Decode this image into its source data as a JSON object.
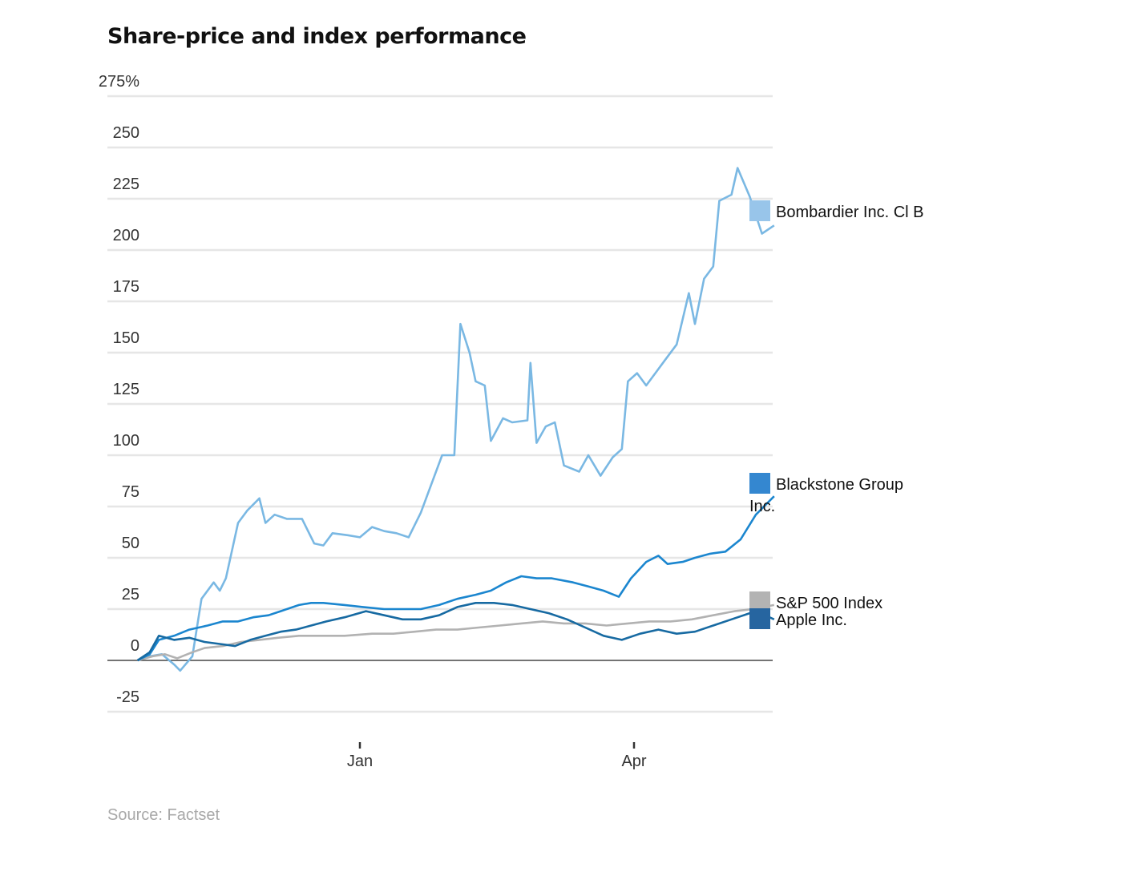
{
  "title": "Share-price and index performance",
  "source": "Source: Factset",
  "chart_data": {
    "type": "line",
    "title": "Share-price and index performance",
    "ylabel": "",
    "xlabel": "",
    "y_unit": "%",
    "ylim": [
      -25,
      275
    ],
    "yticks": [
      -25,
      0,
      25,
      50,
      75,
      100,
      125,
      150,
      175,
      200,
      225,
      250,
      275
    ],
    "ytick_labels": [
      "-25",
      "0",
      "25",
      "50",
      "75",
      "100",
      "125",
      "150",
      "175",
      "200",
      "225",
      "250",
      "275%"
    ],
    "x_domain": [
      "2016-10-28",
      "2017-05-17"
    ],
    "xticks": [
      {
        "date": "2017-01-01",
        "label": "Jan"
      },
      {
        "date": "2017-04-01",
        "label": "Apr"
      }
    ],
    "grid": true,
    "legend": "right",
    "series": [
      {
        "name": "Bombardier Inc. Cl B",
        "legend_label": [
          "Bombardier Inc. Cl B"
        ],
        "color": "#7ab8e3",
        "swatch": "#98c5ea",
        "points": [
          [
            "2016-10-20",
            0
          ],
          [
            "2016-10-24",
            2
          ],
          [
            "2016-10-28",
            3
          ],
          [
            "2016-11-01",
            -2
          ],
          [
            "2016-11-03",
            -5
          ],
          [
            "2016-11-07",
            2
          ],
          [
            "2016-11-10",
            30
          ],
          [
            "2016-11-14",
            38
          ],
          [
            "2016-11-16",
            34
          ],
          [
            "2016-11-18",
            40
          ],
          [
            "2016-11-22",
            67
          ],
          [
            "2016-11-25",
            73
          ],
          [
            "2016-11-29",
            79
          ],
          [
            "2016-12-01",
            67
          ],
          [
            "2016-12-04",
            71
          ],
          [
            "2016-12-08",
            69
          ],
          [
            "2016-12-13",
            69
          ],
          [
            "2016-12-17",
            57
          ],
          [
            "2016-12-20",
            56
          ],
          [
            "2016-12-23",
            62
          ],
          [
            "2016-12-28",
            61
          ],
          [
            "2017-01-01",
            60
          ],
          [
            "2017-01-05",
            65
          ],
          [
            "2017-01-09",
            63
          ],
          [
            "2017-01-13",
            62
          ],
          [
            "2017-01-17",
            60
          ],
          [
            "2017-01-21",
            72
          ],
          [
            "2017-01-25",
            88
          ],
          [
            "2017-01-28",
            100
          ],
          [
            "2017-02-01",
            100
          ],
          [
            "2017-02-03",
            164
          ],
          [
            "2017-02-06",
            150
          ],
          [
            "2017-02-08",
            136
          ],
          [
            "2017-02-11",
            134
          ],
          [
            "2017-02-13",
            107
          ],
          [
            "2017-02-17",
            118
          ],
          [
            "2017-02-20",
            116
          ],
          [
            "2017-02-25",
            117
          ],
          [
            "2017-02-26",
            145
          ],
          [
            "2017-02-28",
            106
          ],
          [
            "2017-03-03",
            114
          ],
          [
            "2017-03-06",
            116
          ],
          [
            "2017-03-09",
            95
          ],
          [
            "2017-03-14",
            92
          ],
          [
            "2017-03-17",
            100
          ],
          [
            "2017-03-21",
            90
          ],
          [
            "2017-03-25",
            99
          ],
          [
            "2017-03-28",
            103
          ],
          [
            "2017-03-30",
            136
          ],
          [
            "2017-04-02",
            140
          ],
          [
            "2017-04-05",
            134
          ],
          [
            "2017-04-08",
            140
          ],
          [
            "2017-04-11",
            146
          ],
          [
            "2017-04-15",
            154
          ],
          [
            "2017-04-19",
            179
          ],
          [
            "2017-04-21",
            164
          ],
          [
            "2017-04-24",
            186
          ],
          [
            "2017-04-27",
            192
          ],
          [
            "2017-04-29",
            224
          ],
          [
            "2017-05-03",
            227
          ],
          [
            "2017-05-05",
            240
          ],
          [
            "2017-05-09",
            226
          ],
          [
            "2017-05-13",
            208
          ],
          [
            "2017-05-17",
            212
          ]
        ]
      },
      {
        "name": "Blackstone Group Inc.",
        "legend_label": [
          "Blackstone Group",
          "Inc."
        ],
        "color": "#1b86cf",
        "swatch": "#3487d0",
        "points": [
          [
            "2016-10-20",
            0
          ],
          [
            "2016-10-24",
            3
          ],
          [
            "2016-10-27",
            10
          ],
          [
            "2016-11-01",
            12
          ],
          [
            "2016-11-06",
            15
          ],
          [
            "2016-11-12",
            17
          ],
          [
            "2016-11-17",
            19
          ],
          [
            "2016-11-22",
            19
          ],
          [
            "2016-11-27",
            21
          ],
          [
            "2016-12-02",
            22
          ],
          [
            "2016-12-06",
            24
          ],
          [
            "2016-12-12",
            27
          ],
          [
            "2016-12-16",
            28
          ],
          [
            "2016-12-20",
            28
          ],
          [
            "2016-12-27",
            27
          ],
          [
            "2017-01-02",
            26
          ],
          [
            "2017-01-09",
            25
          ],
          [
            "2017-01-15",
            25
          ],
          [
            "2017-01-21",
            25
          ],
          [
            "2017-01-27",
            27
          ],
          [
            "2017-02-02",
            30
          ],
          [
            "2017-02-08",
            32
          ],
          [
            "2017-02-13",
            34
          ],
          [
            "2017-02-18",
            38
          ],
          [
            "2017-02-23",
            41
          ],
          [
            "2017-02-28",
            40
          ],
          [
            "2017-03-05",
            40
          ],
          [
            "2017-03-12",
            38
          ],
          [
            "2017-03-17",
            36
          ],
          [
            "2017-03-22",
            34
          ],
          [
            "2017-03-27",
            31
          ],
          [
            "2017-03-31",
            40
          ],
          [
            "2017-04-05",
            48
          ],
          [
            "2017-04-09",
            51
          ],
          [
            "2017-04-12",
            47
          ],
          [
            "2017-04-17",
            48
          ],
          [
            "2017-04-21",
            50
          ],
          [
            "2017-04-26",
            52
          ],
          [
            "2017-05-01",
            53
          ],
          [
            "2017-05-06",
            59
          ],
          [
            "2017-05-11",
            71
          ],
          [
            "2017-05-17",
            80
          ]
        ]
      },
      {
        "name": "S&P 500 Index",
        "legend_label": [
          "S&P 500 Index"
        ],
        "color": "#b2b2b2",
        "swatch": "#b3b3b3",
        "points": [
          [
            "2016-10-20",
            0
          ],
          [
            "2016-10-25",
            2
          ],
          [
            "2016-10-29",
            3
          ],
          [
            "2016-11-02",
            1
          ],
          [
            "2016-11-07",
            4
          ],
          [
            "2016-11-11",
            6
          ],
          [
            "2016-11-17",
            7
          ],
          [
            "2016-11-23",
            9
          ],
          [
            "2016-11-29",
            10
          ],
          [
            "2016-12-05",
            11
          ],
          [
            "2016-12-12",
            12
          ],
          [
            "2016-12-19",
            12
          ],
          [
            "2016-12-27",
            12
          ],
          [
            "2017-01-05",
            13
          ],
          [
            "2017-01-12",
            13
          ],
          [
            "2017-01-19",
            14
          ],
          [
            "2017-01-26",
            15
          ],
          [
            "2017-02-02",
            15
          ],
          [
            "2017-02-09",
            16
          ],
          [
            "2017-02-16",
            17
          ],
          [
            "2017-02-23",
            18
          ],
          [
            "2017-03-02",
            19
          ],
          [
            "2017-03-09",
            18
          ],
          [
            "2017-03-16",
            18
          ],
          [
            "2017-03-23",
            17
          ],
          [
            "2017-03-30",
            18
          ],
          [
            "2017-04-06",
            19
          ],
          [
            "2017-04-13",
            19
          ],
          [
            "2017-04-20",
            20
          ],
          [
            "2017-04-27",
            22
          ],
          [
            "2017-05-04",
            24
          ],
          [
            "2017-05-10",
            25
          ],
          [
            "2017-05-17",
            27
          ]
        ]
      },
      {
        "name": "Apple Inc.",
        "legend_label": [
          "Apple Inc."
        ],
        "color": "#176aa2",
        "swatch": "#2665a0",
        "points": [
          [
            "2016-10-20",
            0
          ],
          [
            "2016-10-24",
            4
          ],
          [
            "2016-10-27",
            12
          ],
          [
            "2016-11-01",
            10
          ],
          [
            "2016-11-06",
            11
          ],
          [
            "2016-11-11",
            9
          ],
          [
            "2016-11-16",
            8
          ],
          [
            "2016-11-21",
            7
          ],
          [
            "2016-11-26",
            10
          ],
          [
            "2016-12-01",
            12
          ],
          [
            "2016-12-06",
            14
          ],
          [
            "2016-12-11",
            15
          ],
          [
            "2016-12-16",
            17
          ],
          [
            "2016-12-21",
            19
          ],
          [
            "2016-12-27",
            21
          ],
          [
            "2017-01-03",
            24
          ],
          [
            "2017-01-09",
            22
          ],
          [
            "2017-01-15",
            20
          ],
          [
            "2017-01-21",
            20
          ],
          [
            "2017-01-27",
            22
          ],
          [
            "2017-02-02",
            26
          ],
          [
            "2017-02-08",
            28
          ],
          [
            "2017-02-14",
            28
          ],
          [
            "2017-02-20",
            27
          ],
          [
            "2017-02-26",
            25
          ],
          [
            "2017-03-04",
            23
          ],
          [
            "2017-03-10",
            20
          ],
          [
            "2017-03-16",
            16
          ],
          [
            "2017-03-22",
            12
          ],
          [
            "2017-03-28",
            10
          ],
          [
            "2017-04-03",
            13
          ],
          [
            "2017-04-09",
            15
          ],
          [
            "2017-04-15",
            13
          ],
          [
            "2017-04-21",
            14
          ],
          [
            "2017-04-27",
            17
          ],
          [
            "2017-05-03",
            20
          ],
          [
            "2017-05-09",
            23
          ],
          [
            "2017-05-14",
            22
          ],
          [
            "2017-05-17",
            20
          ]
        ]
      }
    ]
  }
}
